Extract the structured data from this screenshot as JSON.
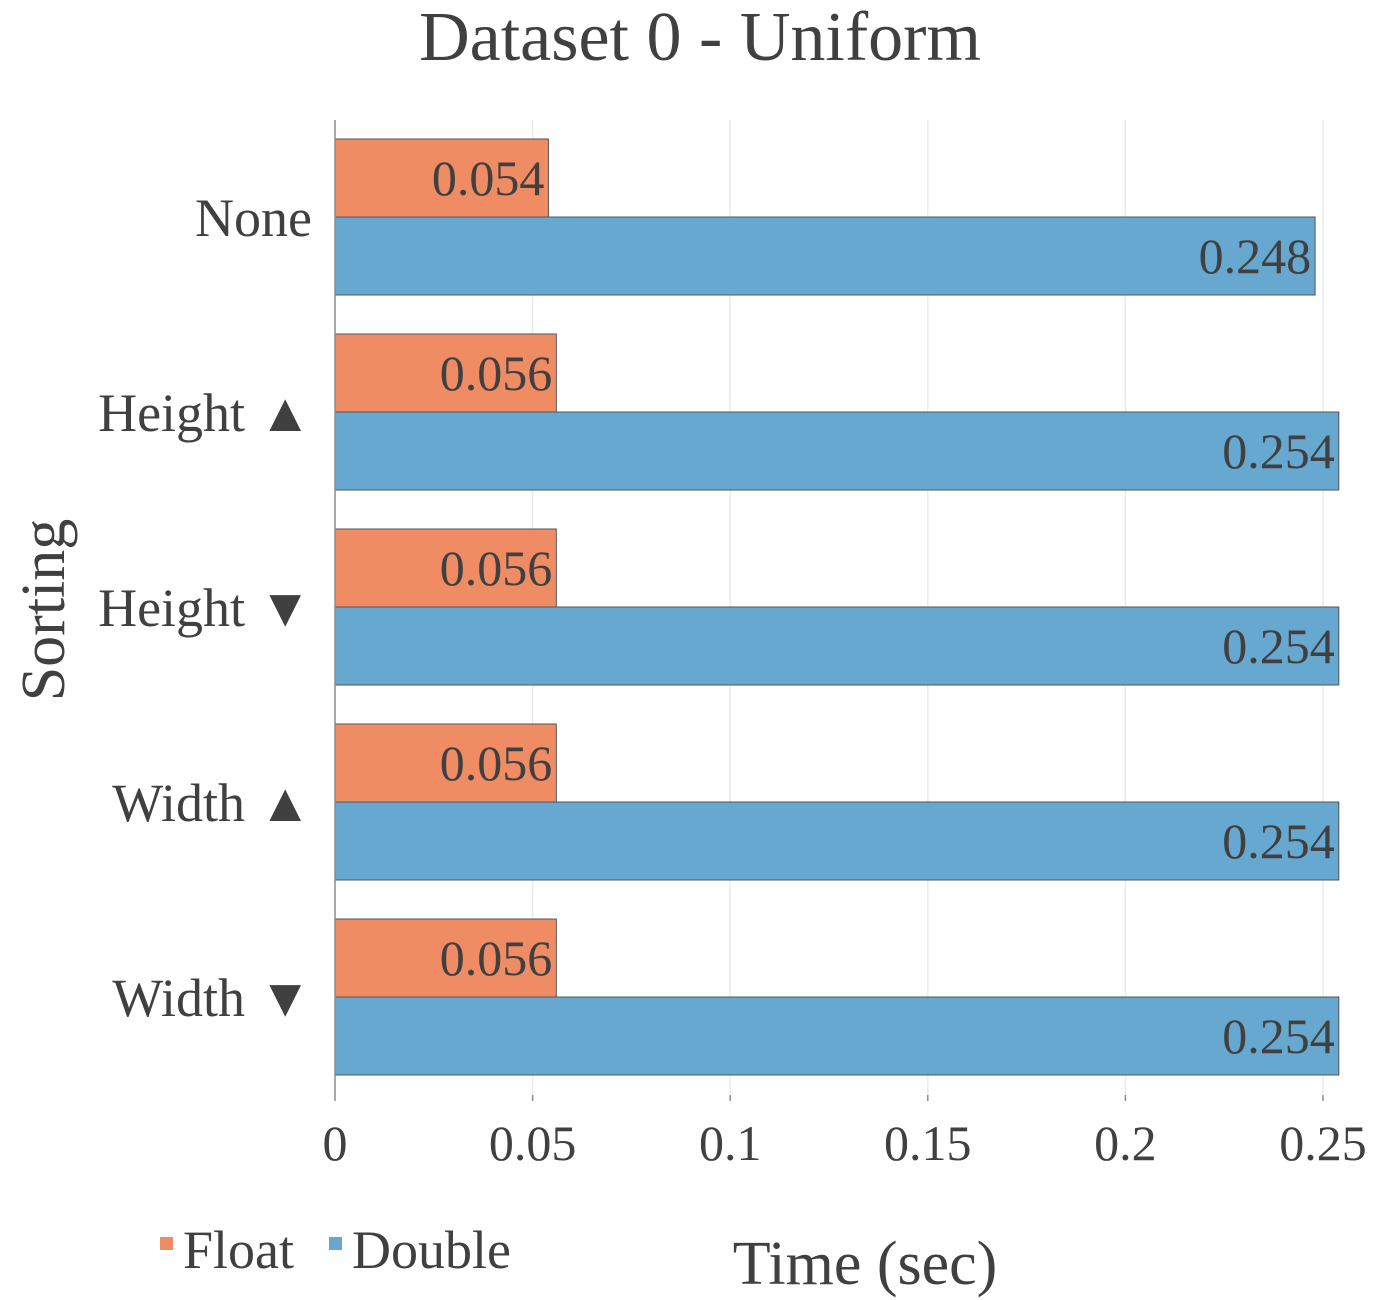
{
  "chart_data": {
    "type": "bar",
    "orientation": "horizontal",
    "title": "Dataset 0 - Uniform",
    "xlabel": "Time (sec)",
    "ylabel": "Sorting",
    "categories": [
      "None",
      "Height ▲",
      "Height ▼",
      "Width ▲",
      "Width ▼"
    ],
    "series": [
      {
        "name": "Float",
        "color": "#f08c64",
        "values": [
          0.054,
          0.056,
          0.056,
          0.056,
          0.056
        ],
        "labels": [
          "0.054",
          "0.056",
          "0.056",
          "0.056",
          "0.056"
        ]
      },
      {
        "name": "Double",
        "color": "#67a8d0",
        "values": [
          0.248,
          0.254,
          0.254,
          0.254,
          0.254
        ],
        "labels": [
          "0.248",
          "0.254",
          "0.254",
          "0.254",
          "0.254"
        ]
      }
    ],
    "xlim": [
      0,
      0.25
    ],
    "xticks": [
      0,
      0.05,
      0.1,
      0.15,
      0.2,
      0.25
    ],
    "xtick_labels": [
      "0",
      "0.05",
      "0.1",
      "0.15",
      "0.2",
      "0.25"
    ],
    "grid": "vertical",
    "legend_position": "bottom-left"
  }
}
